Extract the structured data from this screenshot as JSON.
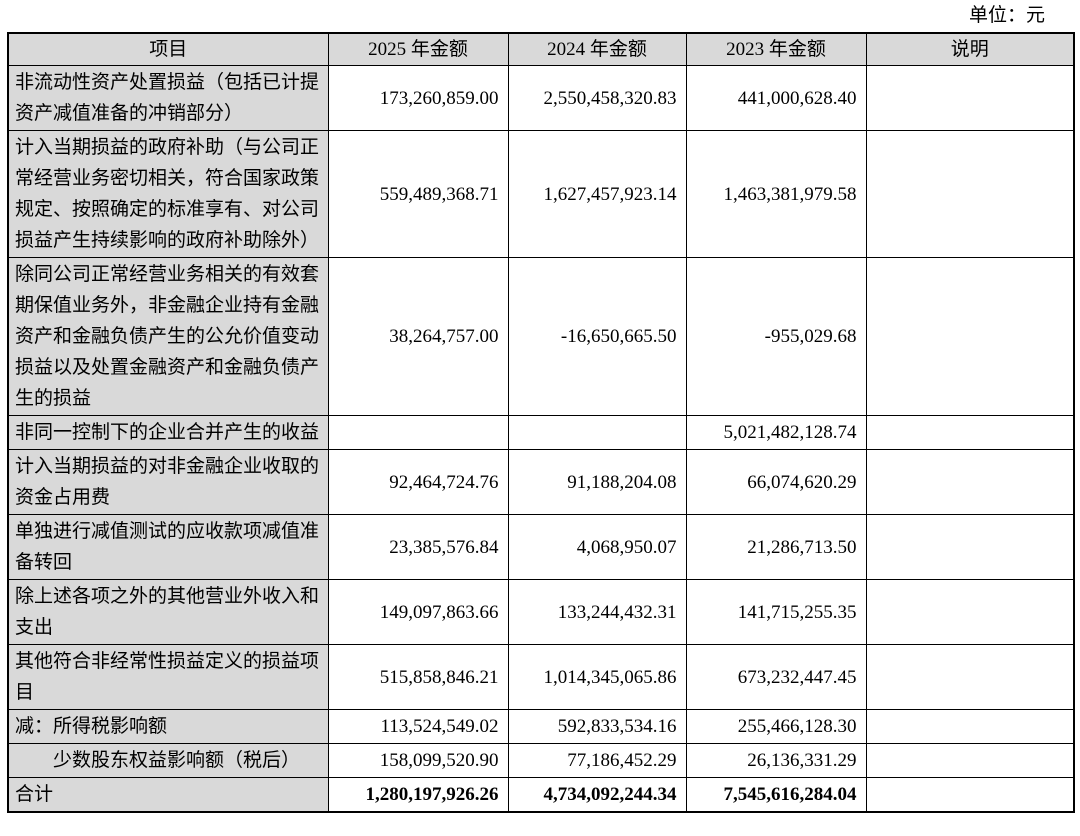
{
  "unit_label": "单位：元",
  "colors": {
    "cell_shading": "#d9d9d9",
    "border": "#000000",
    "text": "#000000"
  },
  "table": {
    "headers": [
      "项目",
      "2025 年金额",
      "2024 年金额",
      "2023 年金额",
      "说明"
    ],
    "rows": [
      {
        "item": "非流动性资产处置损益（包括已计提资产减值准备的冲销部分）",
        "y2025": "173,260,859.00",
        "y2024": "2,550,458,320.83",
        "y2023": "441,000,628.40",
        "note": ""
      },
      {
        "item": "计入当期损益的政府补助（与公司正常经营业务密切相关，符合国家政策规定、按照确定的标准享有、对公司损益产生持续影响的政府补助除外）",
        "y2025": "559,489,368.71",
        "y2024": "1,627,457,923.14",
        "y2023": "1,463,381,979.58",
        "note": ""
      },
      {
        "item": "除同公司正常经营业务相关的有效套期保值业务外，非金融企业持有金融资产和金融负债产生的公允价值变动损益以及处置金融资产和金融负债产生的损益",
        "y2025": "38,264,757.00",
        "y2024": "-16,650,665.50",
        "y2023": "-955,029.68",
        "note": ""
      },
      {
        "item": "非同一控制下的企业合并产生的收益",
        "y2025": "",
        "y2024": "",
        "y2023": "5,021,482,128.74",
        "note": ""
      },
      {
        "item": "计入当期损益的对非金融企业收取的资金占用费",
        "y2025": "92,464,724.76",
        "y2024": "91,188,204.08",
        "y2023": "66,074,620.29",
        "note": ""
      },
      {
        "item": "单独进行减值测试的应收款项减值准备转回",
        "y2025": "23,385,576.84",
        "y2024": "4,068,950.07",
        "y2023": "21,286,713.50",
        "note": ""
      },
      {
        "item": "除上述各项之外的其他营业外收入和支出",
        "y2025": "149,097,863.66",
        "y2024": "133,244,432.31",
        "y2023": "141,715,255.35",
        "note": ""
      },
      {
        "item": "其他符合非经常性损益定义的损益项目",
        "y2025": "515,858,846.21",
        "y2024": "1,014,345,065.86",
        "y2023": "673,232,447.45",
        "note": ""
      },
      {
        "item": "减：所得税影响额",
        "y2025": "113,524,549.02",
        "y2024": "592,833,534.16",
        "y2023": "255,466,128.30",
        "note": ""
      },
      {
        "item": "　　少数股东权益影响额（税后）",
        "y2025": "158,099,520.90",
        "y2024": "77,186,452.29",
        "y2023": "26,136,331.29",
        "note": ""
      },
      {
        "item": "合计",
        "y2025": "1,280,197,926.26",
        "y2024": "4,734,092,244.34",
        "y2023": "7,545,616,284.04",
        "note": ""
      }
    ]
  }
}
